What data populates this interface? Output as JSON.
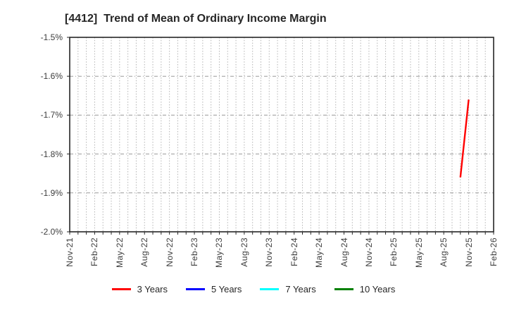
{
  "chart_data": {
    "type": "line",
    "title": "[4412]  Trend of Mean of Ordinary Income Margin",
    "x_axis": {
      "start": "Nov-21",
      "end": "Feb-26",
      "tick_labels": [
        "Nov-21",
        "Feb-22",
        "May-22",
        "Aug-22",
        "Nov-22",
        "Feb-23",
        "May-23",
        "Aug-23",
        "Nov-23",
        "Feb-24",
        "May-24",
        "Aug-24",
        "Nov-24",
        "Feb-25",
        "May-25",
        "Aug-25",
        "Nov-25",
        "Feb-26"
      ],
      "minor_gridline_interval": "monthly"
    },
    "y_axis": {
      "tick_labels": [
        "-1.5%",
        "-1.6%",
        "-1.7%",
        "-1.8%",
        "-1.9%",
        "-2.0%"
      ],
      "max": -1.5,
      "min": -2.0,
      "unit": "%"
    },
    "series": [
      {
        "name": "3 Years",
        "color": "#ff0000",
        "points": [
          {
            "x": "Oct-25",
            "y": -1.86
          },
          {
            "x": "Nov-25",
            "y": -1.66
          }
        ]
      },
      {
        "name": "5 Years",
        "color": "#0000ff",
        "points": []
      },
      {
        "name": "7 Years",
        "color": "#00ffff",
        "points": []
      },
      {
        "name": "10 Years",
        "color": "#008000",
        "points": []
      }
    ],
    "legend": {
      "position": "bottom",
      "entries": [
        "3 Years",
        "5 Years",
        "7 Years",
        "10 Years"
      ]
    },
    "grid": {
      "horizontal_style": "dash-dot",
      "horizontal_color": "#999999",
      "vertical_style": "dotted",
      "vertical_color": "#b3b3b3",
      "border_color": "#262626"
    }
  }
}
